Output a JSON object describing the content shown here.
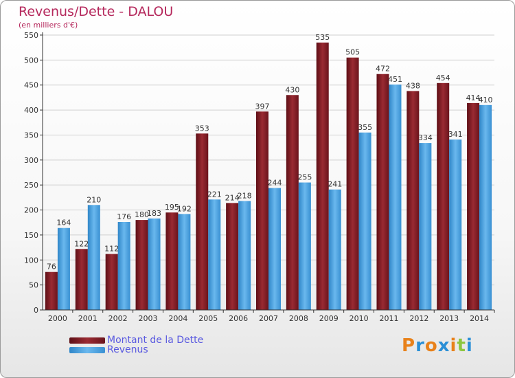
{
  "title": "Revenus/Dette - DALOU",
  "subtitle": "(en milliers d'€)",
  "logo": {
    "text": "Proxiti",
    "colors": [
      "#e8811a",
      "#2a8fd6",
      "#e8811a",
      "#2a8fd6",
      "#e8811a",
      "#8cc63f",
      "#2a8fd6"
    ]
  },
  "colors": {
    "debt": "#7a1a22",
    "revenue": "#4aa3e0",
    "grid": "#d0d0d0",
    "axis": "#333333"
  },
  "chart_data": {
    "type": "bar",
    "categories": [
      "2000",
      "2001",
      "2002",
      "2003",
      "2004",
      "2005",
      "2006",
      "2007",
      "2008",
      "2009",
      "2010",
      "2011",
      "2012",
      "2013",
      "2014"
    ],
    "series": [
      {
        "name": "Montant de la Dette",
        "values": [
          76,
          122,
          112,
          180,
          195,
          353,
          214,
          397,
          430,
          535,
          505,
          472,
          438,
          454,
          414
        ]
      },
      {
        "name": "Revenus",
        "values": [
          164,
          210,
          176,
          183,
          192,
          221,
          218,
          244,
          255,
          241,
          355,
          451,
          334,
          341,
          410
        ]
      }
    ],
    "ylim": [
      0,
      550
    ],
    "yticks": [
      0,
      50,
      100,
      150,
      200,
      250,
      300,
      350,
      400,
      450,
      500,
      550
    ],
    "grid": true,
    "legend": "bottom-left"
  }
}
